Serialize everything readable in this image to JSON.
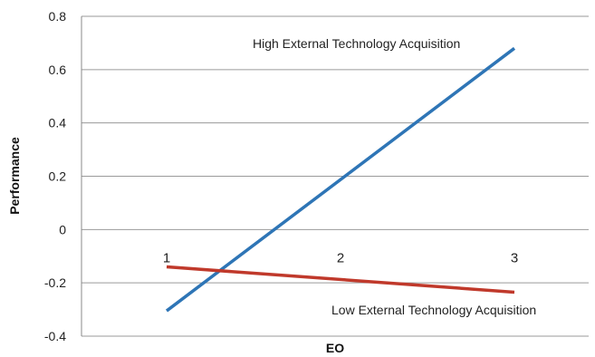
{
  "chart_data": {
    "type": "line",
    "title": "",
    "xlabel": "EO",
    "ylabel": "Performance",
    "categories": [
      "1",
      "2",
      "3"
    ],
    "ylim": [
      -0.4,
      0.8
    ],
    "yticks": [
      "0.8",
      "0.6",
      "0.4",
      "0.2",
      "0",
      "-0.2",
      "-0.4"
    ],
    "grid": true,
    "series": [
      {
        "name": "High External Technology Acquisition",
        "color": "#2E75B6",
        "x": [
          1,
          3
        ],
        "y": [
          -0.305,
          0.68
        ]
      },
      {
        "name": "Low External Technology Acquisition",
        "color": "#C0392B",
        "x": [
          1,
          3
        ],
        "y": [
          -0.14,
          -0.235
        ]
      }
    ]
  }
}
